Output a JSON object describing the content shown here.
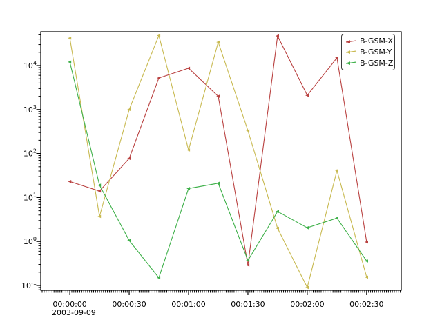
{
  "chart_data": {
    "type": "line",
    "title": "",
    "background_color": "#ffffff",
    "axis_color": "#000000",
    "x_axis": {
      "date_label": "2003-09-09",
      "tick_labels": [
        "00:00:00",
        "00:00:30",
        "00:01:00",
        "00:01:30",
        "00:02:00",
        "00:02:30"
      ],
      "tick_seconds": [
        0,
        30,
        60,
        90,
        120,
        150
      ],
      "minor_tick_interval_seconds": 1,
      "xlim_seconds": [
        -14.7,
        167.5
      ]
    },
    "y_axis": {
      "scale": "log",
      "tick_labels": [
        "10^-1",
        "10^0",
        "10^1",
        "10^2",
        "10^3",
        "10^4"
      ],
      "tick_exponents": [
        -1,
        0,
        1,
        2,
        3,
        4
      ],
      "ylim": [
        0.078,
        58000
      ],
      "grid": false
    },
    "x_seconds": [
      0,
      15,
      30,
      45,
      60,
      75,
      90,
      105,
      120,
      135,
      150
    ],
    "x_point_labels": [
      "00:00:00",
      "00:00:15",
      "00:00:30",
      "00:00:45",
      "00:01:00",
      "00:01:15",
      "00:01:30",
      "00:01:45",
      "00:02:00",
      "00:02:15",
      "00:02:30"
    ],
    "series": [
      {
        "name": "B-GSM-X",
        "color": "#b94140",
        "values": [
          23,
          14,
          77,
          5200,
          8700,
          2000,
          0.29,
          47000,
          2100,
          15000,
          0.97
        ]
      },
      {
        "name": "B-GSM-Y",
        "color": "#c8b950",
        "values": [
          42000,
          3.7,
          1000,
          48000,
          120,
          34000,
          330,
          2.0,
          0.09,
          41,
          0.155
        ]
      },
      {
        "name": "B-GSM-Z",
        "color": "#3eb049",
        "values": [
          12000,
          19,
          1.05,
          0.15,
          16,
          21,
          0.37,
          4.8,
          2.05,
          3.4,
          0.36
        ]
      }
    ],
    "legend": {
      "position": "top-right",
      "items": [
        "B-GSM-X",
        "B-GSM-Y",
        "B-GSM-Z"
      ]
    }
  }
}
